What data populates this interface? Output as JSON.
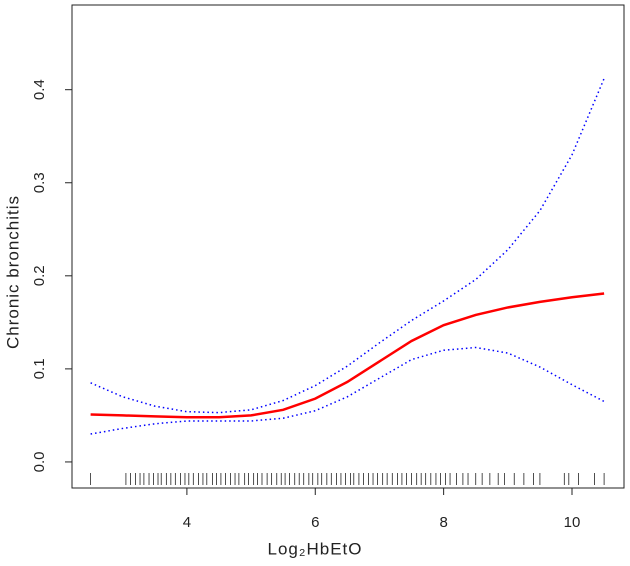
{
  "chart_data": {
    "type": "line",
    "x_label": "Log₂HbEtO",
    "y_label": "Chronic bronchitis",
    "x": [
      2.5,
      3,
      3.5,
      4,
      4.5,
      5,
      5.5,
      6,
      6.5,
      7,
      7.5,
      8,
      8.5,
      9,
      9.5,
      10,
      10.5
    ],
    "series": [
      {
        "color": "#ff0000",
        "style": "solid",
        "values": [
          0.051,
          0.05,
          0.049,
          0.048,
          0.048,
          0.05,
          0.056,
          0.068,
          0.086,
          0.108,
          0.13,
          0.147,
          0.158,
          0.166,
          0.172,
          0.177,
          0.181
        ]
      },
      {
        "color": "#0000ff",
        "style": "dotted",
        "values": [
          0.085,
          0.07,
          0.06,
          0.054,
          0.053,
          0.056,
          0.066,
          0.082,
          0.103,
          0.128,
          0.152,
          0.173,
          0.196,
          0.228,
          0.27,
          0.33,
          0.412
        ]
      },
      {
        "color": "#0000ff",
        "style": "dotted",
        "values": [
          0.03,
          0.036,
          0.041,
          0.044,
          0.044,
          0.044,
          0.047,
          0.055,
          0.07,
          0.09,
          0.11,
          0.12,
          0.123,
          0.117,
          0.102,
          0.083,
          0.065
        ]
      }
    ],
    "rug": [
      2.5,
      3.05,
      3.12,
      3.2,
      3.27,
      3.33,
      3.41,
      3.48,
      3.55,
      3.6,
      3.68,
      3.75,
      3.82,
      3.9,
      3.97,
      4.03,
      4.1,
      4.18,
      4.25,
      4.31,
      4.4,
      4.46,
      4.53,
      4.6,
      4.68,
      4.75,
      4.81,
      4.9,
      4.96,
      5.04,
      5.1,
      5.17,
      5.25,
      5.32,
      5.4,
      5.47,
      5.53,
      5.6,
      5.68,
      5.75,
      5.82,
      5.9,
      5.96,
      6.04,
      6.1,
      6.18,
      6.25,
      6.33,
      6.4,
      6.47,
      6.55,
      6.6,
      6.68,
      6.75,
      6.83,
      6.9,
      6.97,
      7.05,
      7.12,
      7.2,
      7.28,
      7.35,
      7.42,
      7.5,
      7.58,
      7.65,
      7.72,
      7.8,
      7.88,
      7.95,
      8.03,
      8.1,
      8.2,
      8.3,
      8.38,
      8.5,
      8.6,
      8.72,
      8.85,
      8.95,
      9.1,
      9.25,
      9.4,
      9.5,
      9.88,
      9.95,
      10.1,
      10.35,
      10.5
    ],
    "xlim": [
      2.21,
      10.81
    ],
    "ylim": [
      -0.028,
      0.491
    ],
    "xticks": [
      4,
      6,
      8,
      10
    ],
    "yticks": [
      {
        "value": 0,
        "label": "0.0"
      },
      0.1,
      0.2,
      0.3,
      0.4
    ]
  }
}
